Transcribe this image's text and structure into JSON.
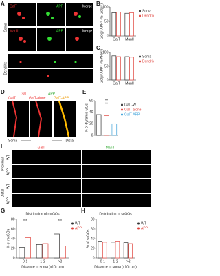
{
  "panel_letters": [
    "A",
    "B",
    "C",
    "D",
    "E",
    "F",
    "G",
    "H"
  ],
  "panel_A": {
    "row_labels": [
      "Soma",
      "Dendrite"
    ],
    "row1": [
      "GalT",
      "APP",
      "Merge"
    ],
    "row2": [
      "ManII",
      "APP",
      "Merge"
    ]
  },
  "panel_D": {
    "header": [
      "GalT",
      "APP"
    ],
    "sub": [
      "GalT",
      "GalT-alone",
      "GalT-APP"
    ],
    "axis": [
      "Soma",
      "Distal"
    ]
  },
  "panel_F": {
    "columns": [
      "GalT",
      "ManII"
    ],
    "groups": [
      "Proximal",
      "Distal"
    ],
    "rows": [
      "WT",
      "APP",
      "WT",
      "APP"
    ]
  },
  "chart_data": [
    {
      "type": "bar",
      "ylabel": "Golgi⁺APP⁺ (% Golgi⁺)",
      "categories": [
        "GalT",
        "ManII"
      ],
      "series": [
        {
          "name": "Soma",
          "color": "#333333",
          "values": [
            80,
            78
          ]
        },
        {
          "name": "Dendrite",
          "color": "#e0413a",
          "values": [
            82,
            80
          ]
        }
      ],
      "ylim": [
        0,
        100
      ],
      "yticks": [
        0,
        50,
        100
      ]
    },
    {
      "type": "bar",
      "ylabel": "Golgi⁺APP⁺ (% APP⁺)",
      "categories": [
        "GalT",
        "ManII"
      ],
      "series": [
        {
          "name": "Soma",
          "color": "#333333",
          "values": [
            88,
            85
          ]
        },
        {
          "name": "Dendrite",
          "color": "#e0413a",
          "values": [
            85,
            83
          ]
        }
      ],
      "ylim": [
        0,
        100
      ],
      "yticks": [
        0,
        50,
        100
      ]
    },
    {
      "type": "bar",
      "ylabel": "% of dynamic GOs",
      "categories": [
        "GalT-WT",
        "GalT-alone",
        "GalT-APP"
      ],
      "values": [
        36,
        34,
        20
      ],
      "colors": [
        "#333333",
        "#e0413a",
        "#3aa0d8"
      ],
      "ylim": [
        0,
        60
      ],
      "yticks": [
        0,
        20,
        40,
        60
      ],
      "annotations": [
        "**",
        "**"
      ]
    },
    {
      "type": "bar",
      "title": "Distribution of mcGOs",
      "ylabel": "% of mcGOs",
      "xlabel": "Distance to soma (x10² μm)",
      "categories": [
        "0-1",
        "1-2",
        ">2"
      ],
      "series": [
        {
          "name": "WT",
          "color": "#333333",
          "values": [
            22,
            28,
            50
          ]
        },
        {
          "name": "APP",
          "color": "#e0413a",
          "values": [
            42,
            30,
            25
          ]
        }
      ],
      "ylim": [
        0,
        80
      ],
      "yticks": [
        0,
        20,
        40,
        60,
        80
      ],
      "annotations": [
        "***",
        "***"
      ]
    },
    {
      "type": "bar",
      "title": "Distribution of scGOs",
      "ylabel": "% of scGOs",
      "xlabel": "Distance to soma (x10² μm)",
      "categories": [
        "0-1",
        "1-2",
        ">2"
      ],
      "series": [
        {
          "name": "WT",
          "color": "#333333",
          "values": [
            35,
            33,
            32
          ]
        },
        {
          "name": "APP",
          "color": "#e0413a",
          "values": [
            33,
            35,
            30
          ]
        }
      ],
      "ylim": [
        0,
        80
      ],
      "yticks": [
        0,
        20,
        40,
        60,
        80
      ]
    }
  ]
}
